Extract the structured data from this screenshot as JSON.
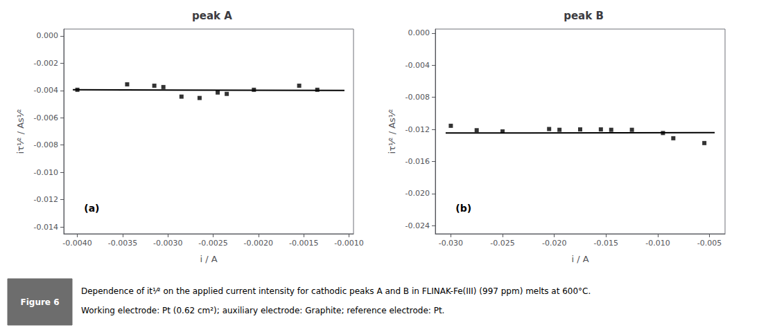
{
  "chart_data": [
    {
      "type": "scatter",
      "title": "peak A",
      "annotations": [
        "(a)"
      ],
      "xlabel": "i / A",
      "ylabel": "iτ¹⁄² / As¹⁄²",
      "xlim": [
        -0.00415,
        -0.00095
      ],
      "ylim": [
        -0.0145,
        0.0005
      ],
      "xticks": [
        {
          "value": -0.004,
          "label": "-0.0040"
        },
        {
          "value": -0.0035,
          "label": "-0.0035"
        },
        {
          "value": -0.003,
          "label": "-0.0030"
        },
        {
          "value": -0.0025,
          "label": "-0.0025"
        },
        {
          "value": -0.002,
          "label": "-0.0020"
        },
        {
          "value": -0.0015,
          "label": "-0.0015"
        },
        {
          "value": -0.001,
          "label": "-0.0010"
        }
      ],
      "yticks": [
        {
          "value": 0.0,
          "label": "0.000"
        },
        {
          "value": -0.002,
          "label": "-0.002"
        },
        {
          "value": -0.004,
          "label": "-0.004"
        },
        {
          "value": -0.006,
          "label": "-0.006"
        },
        {
          "value": -0.008,
          "label": "-0.008"
        },
        {
          "value": -0.01,
          "label": "-0.010"
        },
        {
          "value": -0.012,
          "label": "-0.012"
        },
        {
          "value": -0.014,
          "label": "-0.014"
        }
      ],
      "grid": false,
      "series": [
        {
          "type": "scatter",
          "color": "#000000",
          "marker": "square",
          "x": [
            -0.004,
            -0.00345,
            -0.00315,
            -0.00305,
            -0.00285,
            -0.00265,
            -0.00245,
            -0.00235,
            -0.00205,
            -0.00155,
            -0.00135
          ],
          "values": [
            -0.00395,
            -0.00355,
            -0.00365,
            -0.00375,
            -0.00445,
            -0.00455,
            -0.00415,
            -0.00425,
            -0.00395,
            -0.00365,
            -0.00395
          ]
        },
        {
          "type": "line",
          "color": "#000000",
          "x": [
            -0.00405,
            -0.00105
          ],
          "values": [
            -0.00395,
            -0.004
          ]
        }
      ]
    },
    {
      "type": "scatter",
      "title": "peak B",
      "annotations": [
        "(b)"
      ],
      "xlabel": "i / A",
      "ylabel": "iτ¹⁄² / As¹⁄²",
      "xlim": [
        -0.0315,
        -0.0035
      ],
      "ylim": [
        -0.025,
        0.0005
      ],
      "xticks": [
        {
          "value": -0.03,
          "label": "-0.030"
        },
        {
          "value": -0.025,
          "label": "-0.025"
        },
        {
          "value": -0.02,
          "label": "-0.020"
        },
        {
          "value": -0.015,
          "label": "-0.015"
        },
        {
          "value": -0.01,
          "label": "-0.010"
        },
        {
          "value": -0.005,
          "label": "-0.005"
        }
      ],
      "yticks": [
        {
          "value": 0.0,
          "label": "0.000"
        },
        {
          "value": -0.004,
          "label": "-0.004"
        },
        {
          "value": -0.008,
          "label": "-0.008"
        },
        {
          "value": -0.012,
          "label": "-0.012"
        },
        {
          "value": -0.016,
          "label": "-0.016"
        },
        {
          "value": -0.02,
          "label": "-0.020"
        },
        {
          "value": -0.024,
          "label": "-0.024"
        }
      ],
      "grid": false,
      "series": [
        {
          "type": "scatter",
          "color": "#000000",
          "marker": "square",
          "x": [
            -0.03,
            -0.0275,
            -0.025,
            -0.0205,
            -0.0195,
            -0.0175,
            -0.0155,
            -0.0145,
            -0.0125,
            -0.0095,
            -0.0085,
            -0.0055
          ],
          "values": [
            -0.01155,
            -0.0121,
            -0.01225,
            -0.01195,
            -0.01205,
            -0.012,
            -0.012,
            -0.01205,
            -0.01205,
            -0.01245,
            -0.0131,
            -0.0137
          ]
        },
        {
          "type": "line",
          "color": "#000000",
          "x": [
            -0.0305,
            -0.0045
          ],
          "values": [
            -0.01245,
            -0.0124
          ]
        }
      ]
    }
  ],
  "caption": {
    "label": "Figure 6",
    "color": "#6d6d6d",
    "lines": [
      "Dependence of it¹⁄² on the applied current intensity for cathodic peaks A and B in FLINAK-Fe(III) (997 ppm) melts at 600°C.",
      "Working electrode: Pt (0.62 cm²); auxiliary electrode: Graphite; reference electrode: Pt."
    ]
  }
}
